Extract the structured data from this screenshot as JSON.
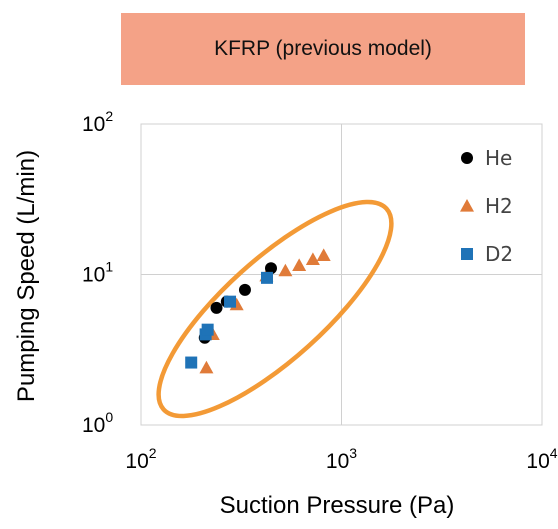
{
  "banner": {
    "text": "KFRP (previous model)",
    "color": "#f4a287"
  },
  "chart_data": {
    "type": "scatter",
    "title": "KFRP (previous model)",
    "xlabel": "Suction Pressure (Pa)",
    "ylabel": "Pumping Speed (L/min)",
    "xscale": "log",
    "yscale": "log",
    "xlim": [
      100,
      10000
    ],
    "ylim": [
      1,
      100
    ],
    "xticks": [
      {
        "base": "10",
        "exp": "2"
      },
      {
        "base": "10",
        "exp": "3"
      },
      {
        "base": "10",
        "exp": "4"
      }
    ],
    "yticks": [
      {
        "base": "10",
        "exp": "0"
      },
      {
        "base": "10",
        "exp": "1"
      },
      {
        "base": "10",
        "exp": "2"
      }
    ],
    "grid": true,
    "legend_position": "top-right",
    "series": [
      {
        "name": "He",
        "marker": "circle",
        "color": "#000000",
        "x": [
          208,
          238,
          268,
          330,
          445
        ],
        "y": [
          3.8,
          6.0,
          6.6,
          7.9,
          11.0
        ]
      },
      {
        "name": "H2",
        "marker": "triangle",
        "color": "#e07b39",
        "x": [
          212,
          228,
          300,
          422,
          525,
          615,
          720,
          815
        ],
        "y": [
          2.4,
          4.0,
          6.3,
          9.8,
          10.6,
          11.5,
          12.6,
          13.4
        ]
      },
      {
        "name": "D2",
        "marker": "square",
        "color": "#1f73b7",
        "x": [
          178,
          210,
          215,
          278,
          425
        ],
        "y": [
          2.6,
          4.0,
          4.3,
          6.6,
          9.5
        ]
      }
    ],
    "annotation": {
      "shape": "ellipse",
      "color": "#f39a36"
    }
  }
}
